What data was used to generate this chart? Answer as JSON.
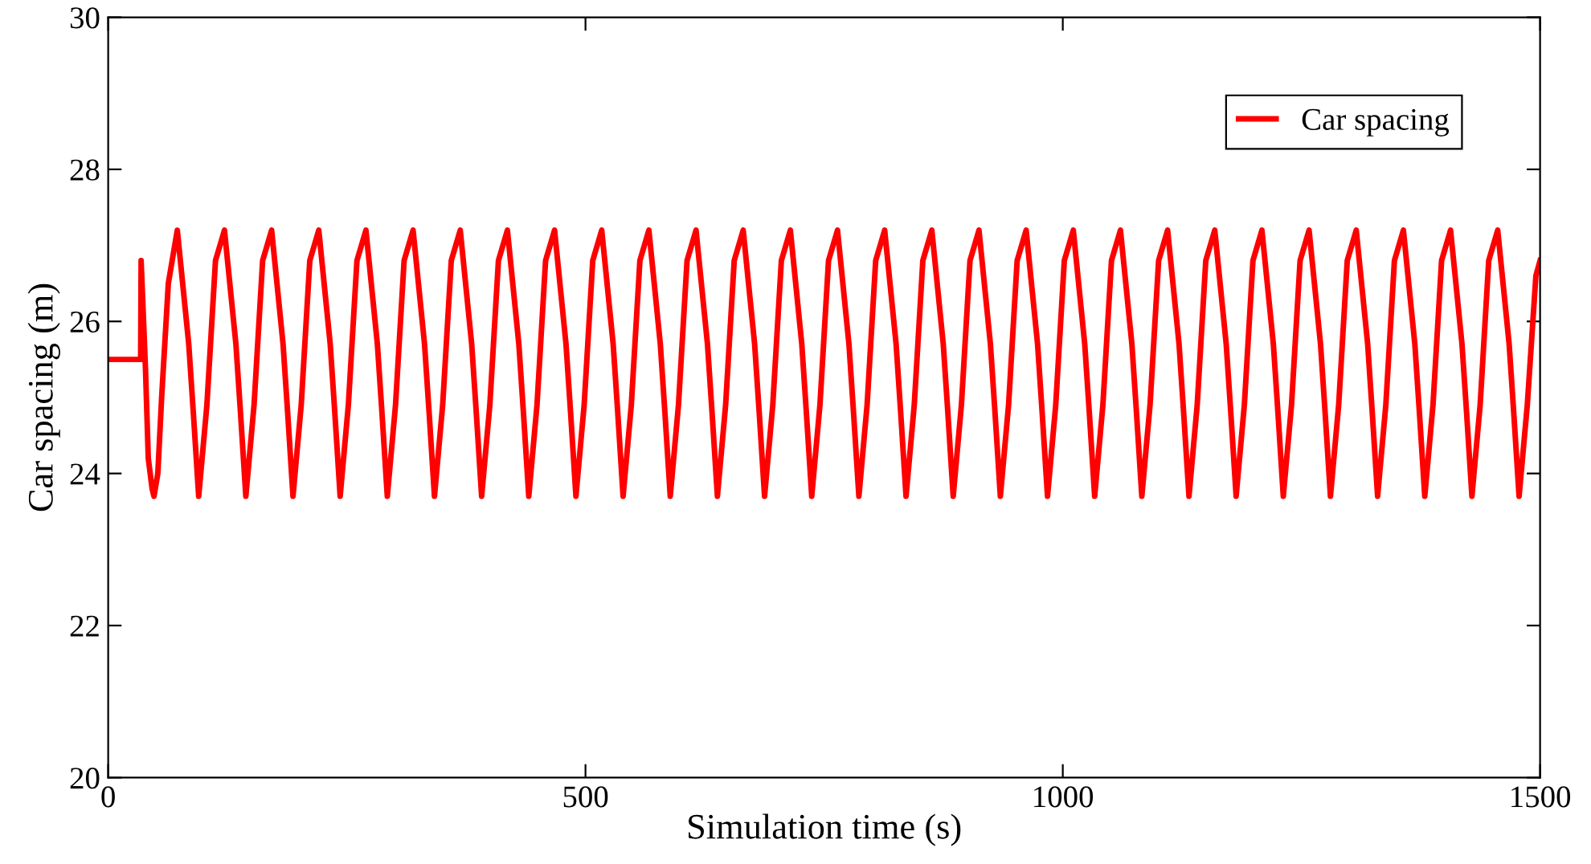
{
  "chart_data": {
    "type": "line",
    "xlabel": "Simulation time (s)",
    "ylabel": "Car spacing (m)",
    "xlim": [
      0,
      1500
    ],
    "xticks": [
      0,
      500,
      1000,
      1500
    ],
    "ylim": [
      20,
      30
    ],
    "yticks": [
      20,
      22,
      24,
      26,
      28,
      30
    ],
    "grid": false,
    "legend": "top right",
    "marker": "none",
    "line_style": "solid",
    "series": [
      {
        "name": "Car spacing",
        "color": "#ff0000",
        "x": [
          0,
          34,
          34.5,
          39,
          42,
          46,
          48,
          52,
          56,
          63,
          72.4,
          84.4,
          89.2,
          94.8,
          103.4,
          112.4,
          121.8,
          133.8,
          138.6,
          144.2,
          152.8,
          161.8,
          171.2,
          183.2,
          188.0,
          193.6,
          202.2,
          211.2,
          220.6,
          232.6,
          237.4,
          243.0,
          251.6,
          260.6,
          270.0,
          282.0,
          286.8,
          292.4,
          301.0,
          310.0,
          319.4,
          331.4,
          336.2,
          341.8,
          350.4,
          359.4,
          368.8,
          380.8,
          385.6,
          391.2,
          399.8,
          408.8,
          418.2,
          430.2,
          435.0,
          440.6,
          449.2,
          458.2,
          467.6,
          479.6,
          484.4,
          490.0,
          498.6,
          507.6,
          517.0,
          529.0,
          533.8,
          539.4,
          548.0,
          557.0,
          566.4,
          578.4,
          583.2,
          588.8,
          597.4,
          606.4,
          615.8,
          627.8,
          632.6,
          638.2,
          646.8,
          655.8,
          665.2,
          677.2,
          682.0,
          687.6,
          696.2,
          705.2,
          714.6,
          726.6,
          731.4,
          737.0,
          745.6,
          754.6,
          764.0,
          776.0,
          780.8,
          786.4,
          795.0,
          804.0,
          813.4,
          825.4,
          830.2,
          835.8,
          844.4,
          853.4,
          862.8,
          874.8,
          879.6,
          885.2,
          893.8,
          902.8,
          912.2,
          924.2,
          929.0,
          934.6,
          943.2,
          952.2,
          961.6,
          973.6,
          978.4,
          984.0,
          992.6,
          1001.6,
          1011.0,
          1023.0,
          1027.8,
          1033.4,
          1042.0,
          1051.0,
          1060.4,
          1072.4,
          1077.2,
          1082.8,
          1091.4,
          1100.4,
          1109.8,
          1121.8,
          1126.6,
          1132.2,
          1140.8,
          1149.8,
          1159.2,
          1171.2,
          1176.0,
          1181.6,
          1190.2,
          1199.2,
          1208.6,
          1220.6,
          1225.4,
          1231.0,
          1239.6,
          1248.6,
          1258.0,
          1270.0,
          1274.8,
          1280.4,
          1289.0,
          1298.0,
          1307.4,
          1319.4,
          1324.2,
          1329.8,
          1338.4,
          1347.4,
          1356.8,
          1368.8,
          1373.6,
          1379.2,
          1387.8,
          1396.8,
          1406.2,
          1418.2,
          1423.0,
          1428.6,
          1437.2,
          1446.2,
          1455.6,
          1467.6,
          1472.4,
          1478.0,
          1486.6,
          1495.6,
          1500.0
        ],
        "values": [
          25.5,
          25.5,
          26.8,
          25.4,
          24.2,
          23.8,
          23.7,
          24.0,
          25.0,
          26.5,
          27.2,
          25.7,
          24.8,
          23.7,
          24.9,
          26.8,
          27.2,
          25.7,
          24.8,
          23.7,
          24.9,
          26.8,
          27.2,
          25.7,
          24.8,
          23.7,
          24.9,
          26.8,
          27.2,
          25.7,
          24.8,
          23.7,
          24.9,
          26.8,
          27.2,
          25.7,
          24.8,
          23.7,
          24.9,
          26.8,
          27.2,
          25.7,
          24.8,
          23.7,
          24.9,
          26.8,
          27.2,
          25.7,
          24.8,
          23.7,
          24.9,
          26.8,
          27.2,
          25.7,
          24.8,
          23.7,
          24.9,
          26.8,
          27.2,
          25.7,
          24.8,
          23.7,
          24.9,
          26.8,
          27.2,
          25.7,
          24.8,
          23.7,
          24.9,
          26.8,
          27.2,
          25.7,
          24.8,
          23.7,
          24.9,
          26.8,
          27.2,
          25.7,
          24.8,
          23.7,
          24.9,
          26.8,
          27.2,
          25.7,
          24.8,
          23.7,
          24.9,
          26.8,
          27.2,
          25.7,
          24.8,
          23.7,
          24.9,
          26.8,
          27.2,
          25.7,
          24.8,
          23.7,
          24.9,
          26.8,
          27.2,
          25.7,
          24.8,
          23.7,
          24.9,
          26.8,
          27.2,
          25.7,
          24.8,
          23.7,
          24.9,
          26.8,
          27.2,
          25.7,
          24.8,
          23.7,
          24.9,
          26.8,
          27.2,
          25.7,
          24.8,
          23.7,
          24.9,
          26.8,
          27.2,
          25.7,
          24.8,
          23.7,
          24.9,
          26.8,
          27.2,
          25.7,
          24.8,
          23.7,
          24.9,
          26.8,
          27.2,
          25.7,
          24.8,
          23.7,
          24.9,
          26.8,
          27.2,
          25.7,
          24.8,
          23.7,
          24.9,
          26.8,
          27.2,
          25.7,
          24.8,
          23.7,
          24.9,
          26.8,
          27.2,
          25.7,
          24.8,
          23.7,
          24.9,
          26.8,
          27.2,
          25.7,
          24.8,
          23.7,
          24.9,
          26.8,
          27.2,
          25.7,
          24.8,
          23.7,
          24.9,
          26.8,
          27.2,
          25.7,
          24.8,
          23.7,
          24.9,
          26.8,
          27.2,
          25.7,
          24.8,
          23.7,
          24.9,
          26.6,
          26.8
        ]
      }
    ]
  }
}
